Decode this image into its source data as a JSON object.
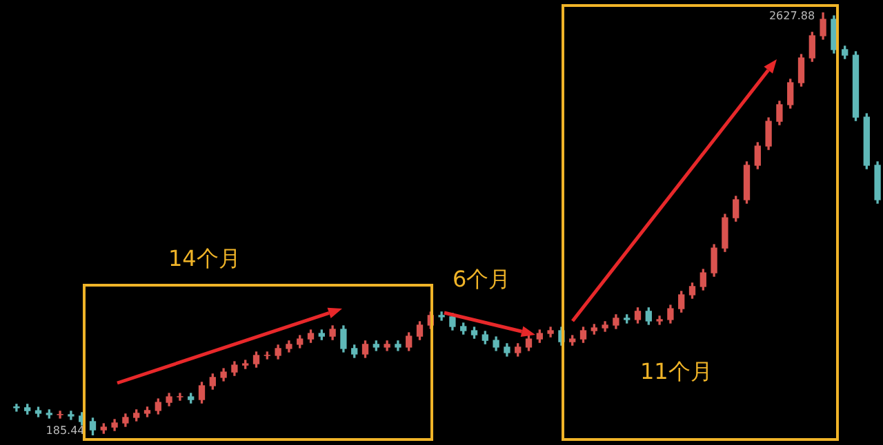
{
  "chart_data": {
    "type": "candlestick",
    "relative": false,
    "categories": [
      null,
      null,
      null,
      null,
      null,
      null,
      null,
      null,
      null,
      null,
      null,
      null,
      null,
      null,
      null,
      null,
      null,
      null,
      null,
      null,
      null,
      null,
      null,
      null,
      null,
      null,
      null,
      null,
      null,
      null,
      null,
      null,
      null,
      null,
      null,
      null,
      null,
      null,
      null,
      null,
      null,
      null,
      null,
      null,
      null,
      null,
      null,
      null,
      null,
      null,
      null,
      null,
      null,
      null,
      null,
      null,
      null,
      null,
      null,
      null,
      null,
      null,
      null,
      null,
      null,
      null,
      null,
      null,
      null,
      null,
      null,
      null,
      null,
      null,
      null,
      null,
      null,
      null,
      null,
      null
    ],
    "ohlc": [
      [
        350,
        365,
        325,
        345
      ],
      [
        345,
        365,
        308,
        328
      ],
      [
        328,
        348,
        293,
        313
      ],
      [
        313,
        333,
        285,
        305
      ],
      [
        305,
        325,
        285,
        305
      ],
      [
        305,
        325,
        277,
        297
      ],
      [
        297,
        317,
        245,
        265
      ],
      [
        265,
        285,
        185.44,
        217
      ],
      [
        217,
        253,
        197,
        233
      ],
      [
        233,
        277,
        213,
        257
      ],
      [
        257,
        309,
        237,
        289
      ],
      [
        289,
        333,
        269,
        313
      ],
      [
        313,
        349,
        293,
        329
      ],
      [
        329,
        396,
        309,
        376
      ],
      [
        376,
        428,
        356,
        408
      ],
      [
        408,
        428,
        388,
        408
      ],
      [
        408,
        428,
        372,
        392
      ],
      [
        392,
        492,
        372,
        472
      ],
      [
        472,
        540,
        452,
        520
      ],
      [
        520,
        571,
        500,
        551
      ],
      [
        551,
        611,
        531,
        591
      ],
      [
        591,
        619,
        571,
        599
      ],
      [
        599,
        667,
        579,
        647
      ],
      [
        647,
        667,
        627,
        647
      ],
      [
        647,
        707,
        627,
        687
      ],
      [
        687,
        731,
        667,
        711
      ],
      [
        711,
        762,
        691,
        742
      ],
      [
        742,
        794,
        722,
        774
      ],
      [
        774,
        794,
        738,
        758
      ],
      [
        758,
        818,
        738,
        798
      ],
      [
        798,
        818,
        667,
        687
      ],
      [
        687,
        707,
        635,
        655
      ],
      [
        655,
        731,
        635,
        711
      ],
      [
        711,
        731,
        675,
        695
      ],
      [
        695,
        731,
        675,
        711
      ],
      [
        711,
        731,
        675,
        695
      ],
      [
        695,
        778,
        675,
        758
      ],
      [
        758,
        842,
        738,
        822
      ],
      [
        822,
        898,
        802,
        878
      ],
      [
        878,
        898,
        850,
        870
      ],
      [
        870,
        890,
        794,
        814
      ],
      [
        814,
        834,
        770,
        790
      ],
      [
        790,
        810,
        746,
        766
      ],
      [
        766,
        786,
        714,
        734
      ],
      [
        734,
        754,
        675,
        695
      ],
      [
        695,
        715,
        643,
        663
      ],
      [
        663,
        715,
        643,
        695
      ],
      [
        695,
        762,
        675,
        742
      ],
      [
        742,
        794,
        722,
        774
      ],
      [
        774,
        810,
        754,
        790
      ],
      [
        790,
        810,
        706,
        726
      ],
      [
        726,
        762,
        706,
        742
      ],
      [
        742,
        810,
        722,
        790
      ],
      [
        790,
        826,
        770,
        806
      ],
      [
        806,
        842,
        786,
        822
      ],
      [
        822,
        882,
        802,
        862
      ],
      [
        862,
        882,
        834,
        854
      ],
      [
        854,
        922,
        834,
        902
      ],
      [
        902,
        922,
        826,
        846
      ],
      [
        846,
        874,
        826,
        854
      ],
      [
        854,
        937,
        834,
        917
      ],
      [
        917,
        1017,
        897,
        997
      ],
      [
        997,
        1065,
        977,
        1045
      ],
      [
        1045,
        1144,
        1025,
        1124
      ],
      [
        1124,
        1287,
        1104,
        1267
      ],
      [
        1267,
        1462,
        1247,
        1442
      ],
      [
        1442,
        1566,
        1422,
        1546
      ],
      [
        1546,
        1765,
        1526,
        1745
      ],
      [
        1745,
        1876,
        1725,
        1856
      ],
      [
        1856,
        2019,
        1836,
        1999
      ],
      [
        1999,
        2115,
        1979,
        2095
      ],
      [
        2095,
        2242,
        2075,
        2222
      ],
      [
        2222,
        2385,
        2202,
        2365
      ],
      [
        2365,
        2513,
        2345,
        2493
      ],
      [
        2493,
        2627.88,
        2473,
        2588
      ],
      [
        2588,
        2608,
        2393,
        2413
      ],
      [
        2413,
        2433,
        2361,
        2381
      ],
      [
        2381,
        2401,
        2003,
        2023
      ],
      [
        2023,
        2043,
        1725,
        1745
      ],
      [
        1745,
        1765,
        1526,
        1546
      ]
    ],
    "colors": [
      "#5fb8b8",
      "#5fb8b8",
      "#5fb8b8",
      "#5fb8b8",
      "#d9534f",
      "#5fb8b8",
      "#5fb8b8",
      "#5fb8b8",
      "#d9534f",
      "#d9534f",
      "#d9534f",
      "#d9534f",
      "#d9534f",
      "#d9534f",
      "#d9534f",
      "#d9534f",
      "#5fb8b8",
      "#d9534f",
      "#d9534f",
      "#d9534f",
      "#d9534f",
      "#d9534f",
      "#d9534f",
      "#d9534f",
      "#d9534f",
      "#d9534f",
      "#d9534f",
      "#d9534f",
      "#5fb8b8",
      "#d9534f",
      "#5fb8b8",
      "#5fb8b8",
      "#d9534f",
      "#5fb8b8",
      "#d9534f",
      "#5fb8b8",
      "#d9534f",
      "#d9534f",
      "#d9534f",
      "#5fb8b8",
      "#5fb8b8",
      "#5fb8b8",
      "#5fb8b8",
      "#5fb8b8",
      "#5fb8b8",
      "#5fb8b8",
      "#d9534f",
      "#d9534f",
      "#d9534f",
      "#d9534f",
      "#5fb8b8",
      "#d9534f",
      "#d9534f",
      "#d9534f",
      "#d9534f",
      "#d9534f",
      "#5fb8b8",
      "#d9534f",
      "#5fb8b8",
      "#d9534f",
      "#d9534f",
      "#d9534f",
      "#d9534f",
      "#d9534f",
      "#d9534f",
      "#d9534f",
      "#d9534f",
      "#d9534f",
      "#d9534f",
      "#d9534f",
      "#d9534f",
      "#d9534f",
      "#d9534f",
      "#d9534f",
      "#d9534f",
      "#5fb8b8",
      "#5fb8b8",
      "#5fb8b8",
      "#5fb8b8",
      "#5fb8b8"
    ],
    "annotations": [
      "14个月",
      "6个月",
      "11个月",
      "185.44",
      "2627.88"
    ]
  }
}
